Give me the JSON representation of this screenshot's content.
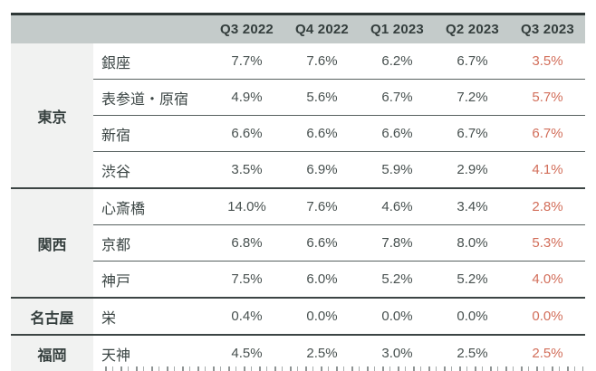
{
  "table": {
    "columns": [
      "Q3 2022",
      "Q4 2022",
      "Q1 2023",
      "Q2 2023",
      "Q3 2023"
    ],
    "groups": [
      {
        "region": "東京",
        "rows": [
          {
            "district": "銀座",
            "values": [
              "7.7%",
              "7.6%",
              "6.2%",
              "6.7%",
              "3.5%"
            ]
          },
          {
            "district": "表参道・原宿",
            "values": [
              "4.9%",
              "5.6%",
              "6.7%",
              "7.2%",
              "5.7%"
            ]
          },
          {
            "district": "新宿",
            "values": [
              "6.6%",
              "6.6%",
              "6.6%",
              "6.7%",
              "6.7%"
            ]
          },
          {
            "district": "渋谷",
            "values": [
              "3.5%",
              "6.9%",
              "5.9%",
              "2.9%",
              "4.1%"
            ]
          }
        ]
      },
      {
        "region": "関西",
        "rows": [
          {
            "district": "心斎橋",
            "values": [
              "14.0%",
              "7.6%",
              "4.6%",
              "3.4%",
              "2.8%"
            ]
          },
          {
            "district": "京都",
            "values": [
              "6.8%",
              "6.6%",
              "7.8%",
              "8.0%",
              "5.3%"
            ]
          },
          {
            "district": "神戸",
            "values": [
              "7.5%",
              "6.0%",
              "5.2%",
              "5.2%",
              "4.0%"
            ]
          }
        ]
      },
      {
        "region": "名古屋",
        "rows": [
          {
            "district": "栄",
            "values": [
              "0.4%",
              "0.0%",
              "0.0%",
              "0.0%",
              "0.0%"
            ]
          }
        ]
      },
      {
        "region": "福岡",
        "rows": [
          {
            "district": "天神",
            "values": [
              "4.5%",
              "2.5%",
              "3.0%",
              "2.5%",
              "2.5%"
            ]
          }
        ]
      }
    ],
    "highlight_column": "Q3 2023"
  },
  "colors": {
    "header_background": "#c4cbca",
    "region_column_background": "#f1f2f1",
    "outer_border": "#2e3736",
    "group_divider": "#3c4544",
    "row_divider": "#57605f",
    "text": "#343e3d",
    "value_text": "#47504f",
    "highlight_value_text": "#d26e5a"
  },
  "chart_data": {
    "type": "table",
    "title": "",
    "columns": [
      "Q3 2022",
      "Q4 2022",
      "Q1 2023",
      "Q2 2023",
      "Q3 2023"
    ],
    "units": "%",
    "highlight_column": "Q3 2023",
    "highlight_color": "#d26e5a",
    "rows": [
      {
        "region": "東京",
        "district": "銀座",
        "values": [
          7.7,
          7.6,
          6.2,
          6.7,
          3.5
        ]
      },
      {
        "region": "東京",
        "district": "表参道・原宿",
        "values": [
          4.9,
          5.6,
          6.7,
          7.2,
          5.7
        ]
      },
      {
        "region": "東京",
        "district": "新宿",
        "values": [
          6.6,
          6.6,
          6.6,
          6.7,
          6.7
        ]
      },
      {
        "region": "東京",
        "district": "渋谷",
        "values": [
          3.5,
          6.9,
          5.9,
          2.9,
          4.1
        ]
      },
      {
        "region": "関西",
        "district": "心斎橋",
        "values": [
          14.0,
          7.6,
          4.6,
          3.4,
          2.8
        ]
      },
      {
        "region": "関西",
        "district": "京都",
        "values": [
          6.8,
          6.6,
          7.8,
          8.0,
          5.3
        ]
      },
      {
        "region": "関西",
        "district": "神戸",
        "values": [
          7.5,
          6.0,
          5.2,
          5.2,
          4.0
        ]
      },
      {
        "region": "名古屋",
        "district": "栄",
        "values": [
          0.4,
          0.0,
          0.0,
          0.0,
          0.0
        ]
      },
      {
        "region": "福岡",
        "district": "天神",
        "values": [
          4.5,
          2.5,
          3.0,
          2.5,
          2.5
        ]
      }
    ]
  }
}
